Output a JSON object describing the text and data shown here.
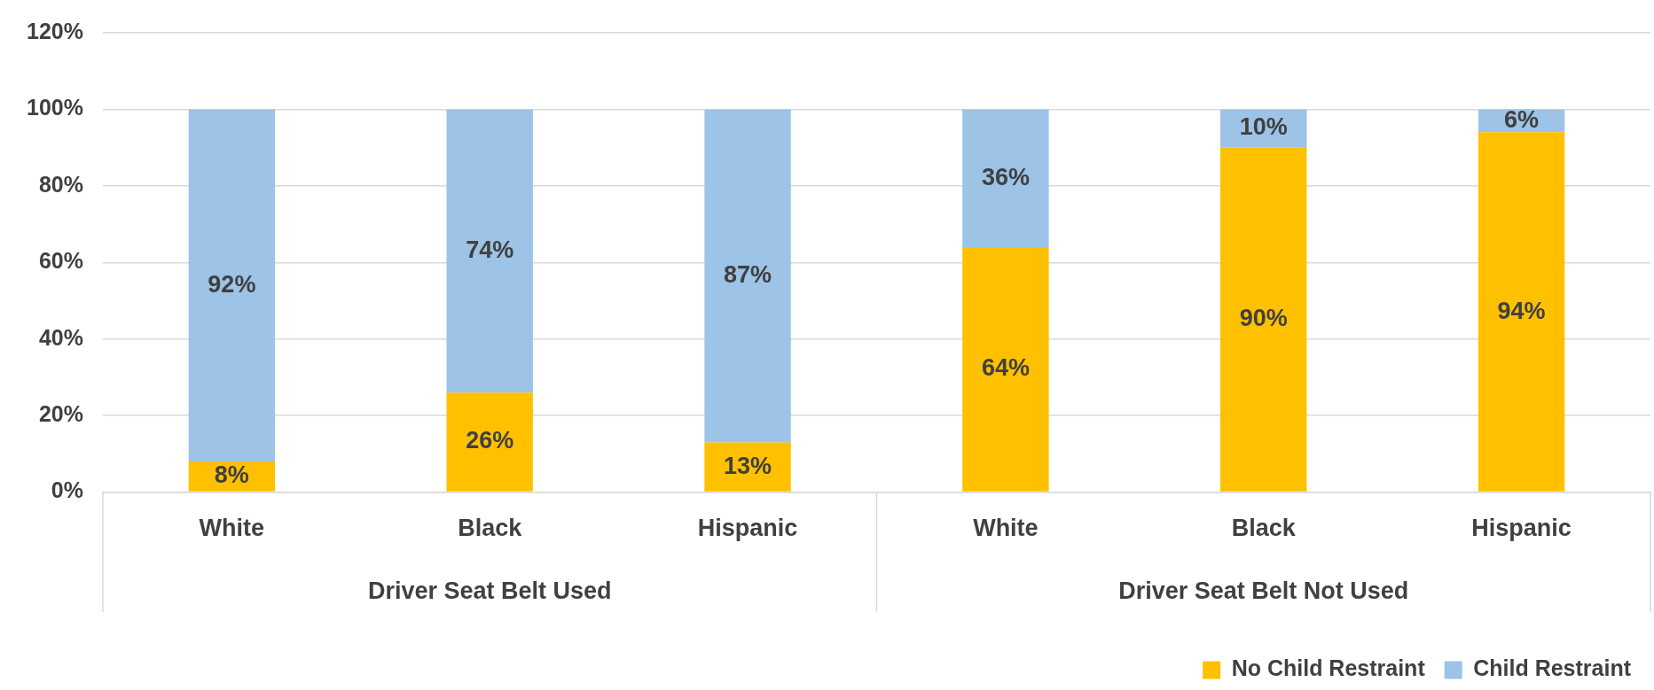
{
  "chart_data": {
    "type": "bar",
    "stacked": true,
    "categories": [
      "White",
      "Black",
      "Hispanic",
      "White",
      "Black",
      "Hispanic"
    ],
    "series": [
      {
        "name": "No Child Restraint",
        "color": "#ffc000",
        "values": [
          8,
          26,
          13,
          64,
          90,
          94
        ],
        "value_labels": [
          "8%",
          "26%",
          "13%",
          "64%",
          "90%",
          "94%"
        ]
      },
      {
        "name": "Child Restraint",
        "color": "#9dc3e6",
        "values": [
          92,
          74,
          87,
          36,
          10,
          6
        ],
        "value_labels": [
          "92%",
          "74%",
          "87%",
          "36%",
          "10%",
          "6%"
        ]
      }
    ],
    "ylim": [
      0,
      120
    ],
    "yticks": [
      {
        "value": 0,
        "label": "0%"
      },
      {
        "value": 20,
        "label": "20%"
      },
      {
        "value": 40,
        "label": "40%"
      },
      {
        "value": 60,
        "label": "60%"
      },
      {
        "value": 80,
        "label": "80%"
      },
      {
        "value": 100,
        "label": "100%"
      },
      {
        "value": 120,
        "label": "120%"
      }
    ],
    "annotations": [
      "Driver Seat Belt Used",
      "Driver Seat Belt Not Used"
    ],
    "grid": "y",
    "legend": "bottom right"
  }
}
